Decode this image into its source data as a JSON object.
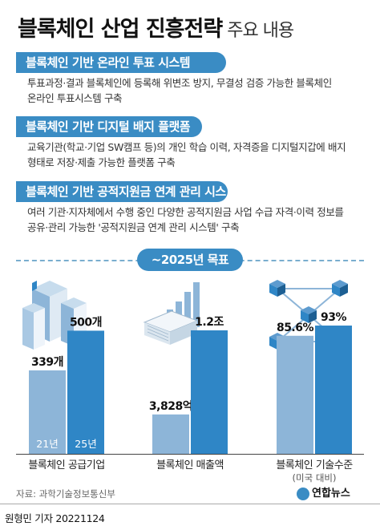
{
  "title": {
    "main": "블록체인 산업 진흥전략",
    "sub": "주요 내용"
  },
  "sections": [
    {
      "heading": "블록체인 기반 온라인 투표 시스템",
      "desc": [
        "투표과정·결과 블록체인에 등록해 위변조 방지, 무결성 검증 가능한 블록체인",
        "온라인 투표시스템 구축"
      ]
    },
    {
      "heading": "블록체인 기반 디지털 배지 플랫폼",
      "desc": [
        "교육기관(학교·기업 SW캠프 등)의 개인 학습 이력, 자격증을 디지털지갑에 배지",
        "형태로 저장·제출 가능한 플랫폼 구축"
      ]
    },
    {
      "heading": "블록체인 기반 공적지원금 연계 관리 시스템",
      "desc": [
        "여러 기관·지자체에서 수행 중인 다양한 공적지원금 사업 수급 자격·이력 정보를",
        "공유·관리 가능한 '공적지원금 연계 관리 시스템' 구축"
      ]
    }
  ],
  "goal_label": "~2025년 목표",
  "colors": {
    "past": "#8db5d8",
    "future": "#2f86c6",
    "banner": "#3a8cc4"
  },
  "chart_data": [
    {
      "type": "bar",
      "categories": [
        "21년",
        "25년"
      ],
      "values": [
        339,
        500
      ],
      "value_labels": [
        "339개",
        "500개"
      ],
      "xlabel": "블록체인 공급기업",
      "ylim": [
        0,
        560
      ]
    },
    {
      "type": "bar",
      "values": [
        3828,
        12000
      ],
      "value_labels": [
        "3,828억",
        "1.2조"
      ],
      "xlabel": "블록체인 매출액",
      "ylim": [
        0,
        13400
      ]
    },
    {
      "type": "bar",
      "values": [
        85.6,
        93
      ],
      "value_labels": [
        "85.6%",
        "93%"
      ],
      "xlabel": "블록체인 기술수준",
      "xlabel_sub": "(미국 대비)",
      "ylim": [
        0,
        100
      ]
    }
  ],
  "source": "자료: 과학기술정보통신부",
  "logo": "연합뉴스",
  "byline": "원형민 기자  20221124"
}
